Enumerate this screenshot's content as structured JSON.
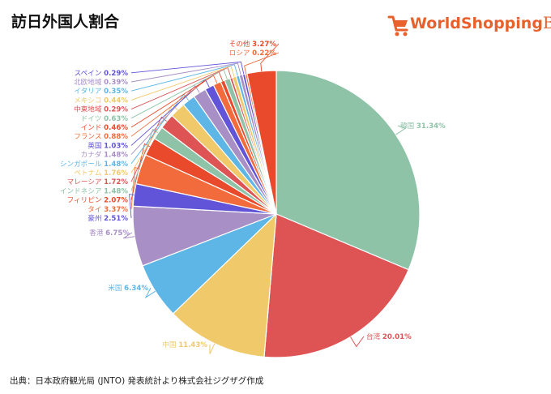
{
  "title": "訪日外国人割合",
  "logo": {
    "text_main": "WorldShopping",
    "text_accent": "BIZ",
    "icon": "shopping-cart-icon"
  },
  "source": "出典：日本政府観光局 (JNTO) 発表統計より株式会社ジグザグ作成",
  "chart_data": {
    "type": "pie",
    "unit": "%",
    "legend": "none",
    "slices": [
      {
        "label": "韓国",
        "value": 31.34,
        "display": "31.34%",
        "color": "#8ec3a7"
      },
      {
        "label": "台湾",
        "value": 20.01,
        "display": "20.01%",
        "color": "#de5455"
      },
      {
        "label": "中国",
        "value": 11.43,
        "display": "11.43%",
        "color": "#f0c96a"
      },
      {
        "label": "米国",
        "value": 6.34,
        "display": "6.34%",
        "color": "#5db6e6"
      },
      {
        "label": "香港",
        "value": 6.75,
        "display": "6.75%",
        "color": "#a88fc6"
      },
      {
        "label": "豪州",
        "value": 2.51,
        "display": "2.51%",
        "color": "#6154d8"
      },
      {
        "label": "タイ",
        "value": 3.37,
        "display": "3.37%",
        "color": "#f26b3c"
      },
      {
        "label": "フィリピン",
        "value": 2.07,
        "display": "2.07%",
        "color": "#e84a2b"
      },
      {
        "label": "インドネシア",
        "value": 1.48,
        "display": "1.48%",
        "color": "#8ec3a7"
      },
      {
        "label": "マレーシア",
        "value": 1.72,
        "display": "1.72%",
        "color": "#de5455"
      },
      {
        "label": "ベトナム",
        "value": 1.76,
        "display": "1.76%",
        "color": "#f0c96a"
      },
      {
        "label": "シンガポール",
        "value": 1.48,
        "display": "1.48%",
        "color": "#5db6e6"
      },
      {
        "label": "カナダ",
        "value": 1.48,
        "display": "1.48%",
        "color": "#a88fc6"
      },
      {
        "label": "英国",
        "value": 1.03,
        "display": "1.03%",
        "color": "#6154d8"
      },
      {
        "label": "フランス",
        "value": 0.88,
        "display": "0.88%",
        "color": "#f26b3c"
      },
      {
        "label": "インド",
        "value": 0.46,
        "display": "0.46%",
        "color": "#e84a2b"
      },
      {
        "label": "ドイツ",
        "value": 0.63,
        "display": "0.63%",
        "color": "#8ec3a7"
      },
      {
        "label": "中東地域",
        "value": 0.29,
        "display": "0.29%",
        "color": "#de5455"
      },
      {
        "label": "メキシコ",
        "value": 0.44,
        "display": "0.44%",
        "color": "#f0c96a"
      },
      {
        "label": "イタリア",
        "value": 0.35,
        "display": "0.35%",
        "color": "#5db6e6"
      },
      {
        "label": "北欧地域",
        "value": 0.39,
        "display": "0.39%",
        "color": "#a88fc6"
      },
      {
        "label": "スペイン",
        "value": 0.29,
        "display": "0.29%",
        "color": "#6154d8"
      },
      {
        "label": "ロシア",
        "value": 0.22,
        "display": "0.22%",
        "color": "#f26b3c"
      },
      {
        "label": "その他",
        "value": 3.27,
        "display": "3.27%",
        "color": "#e84a2b"
      }
    ]
  }
}
